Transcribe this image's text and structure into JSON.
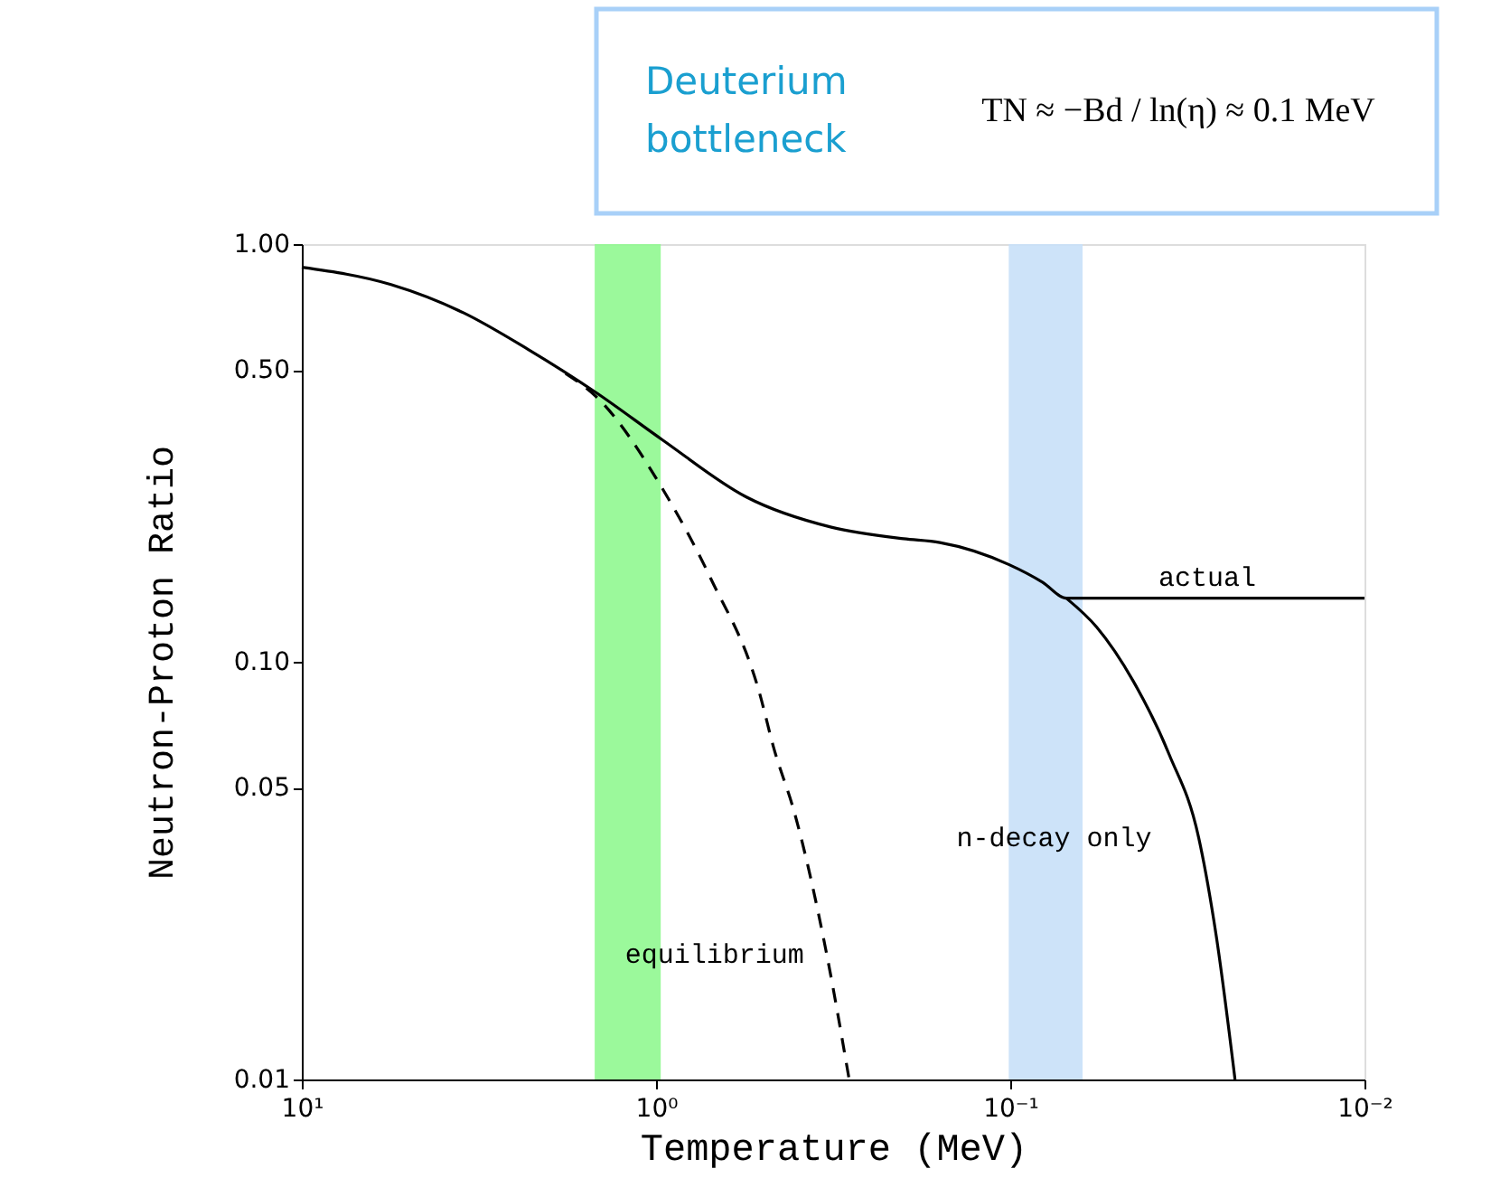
{
  "chart_data": {
    "type": "line",
    "xlabel": "Temperature (MeV)",
    "ylabel": "Neutron-Proton Ratio",
    "log": "xy",
    "xlim": [
      10,
      0.01
    ],
    "ylim": [
      0.01,
      1
    ],
    "xticks": [
      {
        "value": 10,
        "label": "10¹"
      },
      {
        "value": 1,
        "label": "10⁰"
      },
      {
        "value": 0.1,
        "label": "10⁻¹"
      },
      {
        "value": 0.01,
        "label": "10⁻²"
      }
    ],
    "yticks": [
      {
        "value": 1,
        "label": "1.00"
      },
      {
        "value": 0.5,
        "label": "0.50"
      },
      {
        "value": 0.1,
        "label": "0.10"
      },
      {
        "value": 0.05,
        "label": "0.05"
      },
      {
        "value": 0.01,
        "label": "0.01"
      }
    ],
    "grid": false,
    "series": [
      {
        "name": "actual",
        "color": "#000000",
        "line_style": "solid",
        "x": [
          10,
          5.6,
          3.5,
          2.3,
          1.47,
          0.96,
          0.556,
          0.32,
          0.2,
          0.158,
          0.101,
          0.081,
          0.0695,
          0.01
        ],
        "values": [
          0.88,
          0.8,
          0.685,
          0.56,
          0.44,
          0.34,
          0.248,
          0.21,
          0.197,
          0.193,
          0.171,
          0.155,
          0.142,
          0.142
        ]
      },
      {
        "name": "n-decay only",
        "color": "#000000",
        "line_style": "solid",
        "x": [
          0.0695,
          0.057,
          0.045,
          0.0356,
          0.0294,
          0.0262,
          0.0232
        ],
        "values": [
          0.142,
          0.121,
          0.09,
          0.06,
          0.038,
          0.022,
          0.01
        ]
      },
      {
        "name": "equilibrium",
        "color": "#000000",
        "line_style": "dashed",
        "x": [
          1.8,
          1.47,
          0.96,
          0.7,
          0.51,
          0.466,
          0.405,
          0.33,
          0.285
        ],
        "values": [
          0.49,
          0.43,
          0.26,
          0.158,
          0.084,
          0.0625,
          0.043,
          0.02,
          0.01
        ]
      }
    ],
    "bands": [
      {
        "axis": "x",
        "from": 1.49,
        "to": 0.97,
        "color": "#90f890"
      },
      {
        "axis": "x",
        "from": 0.101,
        "to": 0.0625,
        "color": "#c8e0f8"
      }
    ],
    "annotations": [
      "Deuterium bottleneck",
      "TN ≈ −Bd / ln(η) ≈ 0.1 MeV"
    ]
  }
}
